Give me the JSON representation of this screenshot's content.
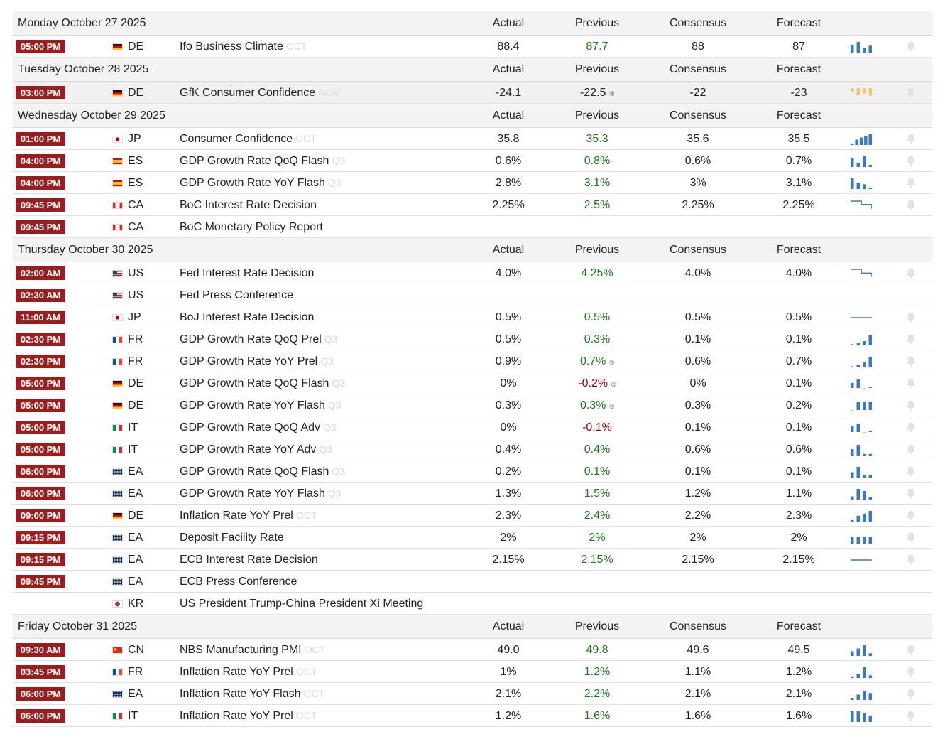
{
  "columns": {
    "actual": "Actual",
    "previous": "Previous",
    "consensus": "Consensus",
    "forecast": "Forecast"
  },
  "colors": {
    "time_badge": "#9b1d1d",
    "positive": "#1a7a1a",
    "negative": "#a10000",
    "spark": "#3a79c0",
    "spark_neg": "#f2c66d"
  },
  "days": [
    {
      "date": "Monday October 27 2025",
      "events": [
        {
          "time": "05:00 PM",
          "country": "DE",
          "event": "Ifo Business Climate",
          "ref": "OCT",
          "actual": "88.4",
          "previous": "87.7",
          "prev_dir": "up",
          "prev_revised": false,
          "consensus": "88",
          "forecast": "87",
          "spark": [
            0.7,
            1.0,
            0.45,
            0.65
          ],
          "spark_type": "bar"
        }
      ]
    },
    {
      "date": "Tuesday October 28 2025",
      "events": [
        {
          "time": "03:00 PM",
          "country": "DE",
          "event": "GfK Consumer Confidence",
          "ref": "NOV",
          "actual": "-24.1",
          "previous": "-22.5",
          "prev_dir": "",
          "prev_revised": true,
          "consensus": "-22",
          "forecast": "-23",
          "spark": [
            -0.5,
            -0.9,
            -0.7,
            -1.0
          ],
          "spark_type": "bar",
          "shaded": true
        }
      ]
    },
    {
      "date": "Wednesday October 29 2025",
      "events": [
        {
          "time": "01:00 PM",
          "country": "JP",
          "event": "Consumer Confidence",
          "ref": "OCT",
          "actual": "35.8",
          "previous": "35.3",
          "prev_dir": "up",
          "prev_revised": false,
          "consensus": "35.6",
          "forecast": "35.5",
          "spark": [
            0.15,
            0.5,
            0.7,
            0.85,
            1.0
          ],
          "spark_type": "bar"
        },
        {
          "time": "04:00 PM",
          "country": "ES",
          "event": "GDP Growth Rate QoQ Flash",
          "ref": "Q3",
          "actual": "0.6%",
          "previous": "0.8%",
          "prev_dir": "up",
          "prev_revised": false,
          "consensus": "0.6%",
          "forecast": "0.7%",
          "spark": [
            0.85,
            0.4,
            1.0,
            0.2
          ],
          "spark_type": "bar"
        },
        {
          "time": "04:00 PM",
          "country": "ES",
          "event": "GDP Growth Rate YoY Flash",
          "ref": "Q3",
          "actual": "2.8%",
          "previous": "3.1%",
          "prev_dir": "up",
          "prev_revised": false,
          "consensus": "3%",
          "forecast": "3.1%",
          "spark": [
            1.0,
            0.6,
            0.45,
            0.15
          ],
          "spark_type": "bar"
        },
        {
          "time": "09:45 PM",
          "country": "CA",
          "event": "BoC Interest Rate Decision",
          "ref": "",
          "actual": "2.25%",
          "previous": "2.5%",
          "prev_dir": "up",
          "prev_revised": false,
          "consensus": "2.25%",
          "forecast": "2.25%",
          "spark": [
            1.0,
            1.0,
            0.6,
            0.6,
            0.1
          ],
          "spark_type": "step"
        },
        {
          "time": "09:45 PM",
          "country": "CA",
          "event": "BoC Monetary Policy Report",
          "ref": "",
          "actual": "",
          "previous": "",
          "prev_dir": "",
          "prev_revised": false,
          "consensus": "",
          "forecast": "",
          "spark": [],
          "spark_type": "none"
        }
      ]
    },
    {
      "date": "Thursday October 30 2025",
      "events": [
        {
          "time": "02:00 AM",
          "country": "US",
          "event": "Fed Interest Rate Decision",
          "ref": "",
          "actual": "4.0%",
          "previous": "4.25%",
          "prev_dir": "up",
          "prev_revised": false,
          "consensus": "4.0%",
          "forecast": "4.0%",
          "spark": [
            1.0,
            1.0,
            0.55,
            0.55,
            0.1
          ],
          "spark_type": "step"
        },
        {
          "time": "02:30 AM",
          "country": "US",
          "event": "Fed Press Conference",
          "ref": "",
          "actual": "",
          "previous": "",
          "prev_dir": "",
          "prev_revised": false,
          "consensus": "",
          "forecast": "",
          "spark": [],
          "spark_type": "none"
        },
        {
          "time": "11:00 AM",
          "country": "JP",
          "event": "BoJ Interest Rate Decision",
          "ref": "",
          "actual": "0.5%",
          "previous": "0.5%",
          "prev_dir": "up",
          "prev_revised": false,
          "consensus": "0.5%",
          "forecast": "0.5%",
          "spark": [
            0.5,
            0.5,
            0.5,
            0.5,
            0.5
          ],
          "spark_type": "step"
        },
        {
          "time": "02:30 PM",
          "country": "FR",
          "event": "GDP Growth Rate QoQ Prel",
          "ref": "Q3",
          "actual": "0.5%",
          "previous": "0.3%",
          "prev_dir": "up",
          "prev_revised": false,
          "consensus": "0.1%",
          "forecast": "0.1%",
          "spark": [
            0.1,
            0.25,
            0.4,
            1.0
          ],
          "spark_type": "bar"
        },
        {
          "time": "02:30 PM",
          "country": "FR",
          "event": "GDP Growth Rate YoY Prel",
          "ref": "Q3",
          "actual": "0.9%",
          "previous": "0.7%",
          "prev_dir": "up",
          "prev_revised": true,
          "consensus": "0.6%",
          "forecast": "0.7%",
          "spark": [
            0.1,
            0.2,
            0.5,
            1.0
          ],
          "spark_type": "bar"
        },
        {
          "time": "05:00 PM",
          "country": "DE",
          "event": "GDP Growth Rate QoQ Flash",
          "ref": "Q3",
          "actual": "0%",
          "previous": "-0.2%",
          "prev_dir": "down",
          "prev_revised": true,
          "consensus": "0%",
          "forecast": "0.1%",
          "spark": [
            0.6,
            1.0,
            -0.4,
            0.05
          ],
          "spark_type": "bar"
        },
        {
          "time": "05:00 PM",
          "country": "DE",
          "event": "GDP Growth Rate YoY Flash",
          "ref": "Q3",
          "actual": "0.3%",
          "previous": "0.3%",
          "prev_dir": "up",
          "prev_revised": true,
          "consensus": "0.3%",
          "forecast": "0.2%",
          "spark": [
            -0.4,
            1.0,
            1.0,
            1.0
          ],
          "spark_type": "bar"
        },
        {
          "time": "05:00 PM",
          "country": "IT",
          "event": "GDP Growth Rate QoQ Adv",
          "ref": "Q3",
          "actual": "0%",
          "previous": "-0.1%",
          "prev_dir": "down",
          "prev_revised": false,
          "consensus": "0.1%",
          "forecast": "0.1%",
          "spark": [
            0.7,
            1.0,
            -0.4,
            0.05
          ],
          "spark_type": "bar"
        },
        {
          "time": "05:00 PM",
          "country": "IT",
          "event": "GDP Growth Rate YoY Adv",
          "ref": "Q3",
          "actual": "0.4%",
          "previous": "0.4%",
          "prev_dir": "up",
          "prev_revised": false,
          "consensus": "0.6%",
          "forecast": "0.6%",
          "spark": [
            0.6,
            1.0,
            0.15,
            0.15
          ],
          "spark_type": "bar"
        },
        {
          "time": "06:00 PM",
          "country": "EA",
          "event": "GDP Growth Rate QoQ Flash",
          "ref": "Q3",
          "actual": "0.2%",
          "previous": "0.1%",
          "prev_dir": "up",
          "prev_revised": false,
          "consensus": "0.1%",
          "forecast": "0.1%",
          "spark": [
            0.5,
            1.0,
            0.25,
            0.25
          ],
          "spark_type": "bar"
        },
        {
          "time": "06:00 PM",
          "country": "EA",
          "event": "GDP Growth Rate YoY Flash",
          "ref": "Q3",
          "actual": "1.3%",
          "previous": "1.5%",
          "prev_dir": "up",
          "prev_revised": false,
          "consensus": "1.2%",
          "forecast": "1.1%",
          "spark": [
            0.3,
            1.0,
            0.8,
            0.2
          ],
          "spark_type": "bar"
        },
        {
          "time": "09:00 PM",
          "country": "DE",
          "event": "Inflation Rate YoY Prel",
          "ref": "OCT",
          "actual": "2.3%",
          "previous": "2.4%",
          "prev_dir": "up",
          "prev_revised": false,
          "consensus": "2.2%",
          "forecast": "2.3%",
          "spark": [
            0.15,
            0.55,
            0.75,
            1.0
          ],
          "spark_type": "bar"
        },
        {
          "time": "09:15 PM",
          "country": "EA",
          "event": "Deposit Facility Rate",
          "ref": "",
          "actual": "2%",
          "previous": "2%",
          "prev_dir": "up",
          "prev_revised": false,
          "consensus": "2%",
          "forecast": "2%",
          "spark": [
            0.6,
            0.6,
            0.6,
            0.6
          ],
          "spark_type": "bar"
        },
        {
          "time": "09:15 PM",
          "country": "EA",
          "event": "ECB Interest Rate Decision",
          "ref": "",
          "actual": "2.15%",
          "previous": "2.15%",
          "prev_dir": "up",
          "prev_revised": false,
          "consensus": "2.15%",
          "forecast": "2.15%",
          "spark": [
            0.5,
            0.5,
            0.5,
            0.5,
            0.5
          ],
          "spark_type": "step"
        },
        {
          "time": "09:45 PM",
          "country": "EA",
          "event": "ECB Press Conference",
          "ref": "",
          "actual": "",
          "previous": "",
          "prev_dir": "",
          "prev_revised": false,
          "consensus": "",
          "forecast": "",
          "spark": [],
          "spark_type": "none"
        },
        {
          "time": "",
          "country": "KR",
          "event": "US President Trump-China President Xi Meeting",
          "ref": "",
          "actual": "",
          "previous": "",
          "prev_dir": "",
          "prev_revised": false,
          "consensus": "",
          "forecast": "",
          "spark": [],
          "spark_type": "none",
          "no_bell": true
        }
      ]
    },
    {
      "date": "Friday October 31 2025",
      "events": [
        {
          "time": "09:30 AM",
          "country": "CN",
          "event": "NBS Manufacturing PMI",
          "ref": "OCT",
          "actual": "49.0",
          "previous": "49.8",
          "prev_dir": "up",
          "prev_revised": false,
          "consensus": "49.6",
          "forecast": "49.5",
          "spark": [
            0.45,
            0.7,
            1.0,
            0.25
          ],
          "spark_type": "bar"
        },
        {
          "time": "03:45 PM",
          "country": "FR",
          "event": "Inflation Rate YoY Prel",
          "ref": "OCT",
          "actual": "1%",
          "previous": "1.2%",
          "prev_dir": "up",
          "prev_revised": false,
          "consensus": "1.1%",
          "forecast": "1.2%",
          "spark": [
            0.15,
            0.4,
            1.0,
            0.25
          ],
          "spark_type": "bar"
        },
        {
          "time": "06:00 PM",
          "country": "EA",
          "event": "Inflation Rate YoY Flash",
          "ref": "OCT",
          "actual": "2.1%",
          "previous": "2.2%",
          "prev_dir": "up",
          "prev_revised": false,
          "consensus": "2.1%",
          "forecast": "2.1%",
          "spark": [
            0.2,
            0.5,
            0.8,
            0.65
          ],
          "spark_type": "bar"
        },
        {
          "time": "06:00 PM",
          "country": "IT",
          "event": "Inflation Rate YoY Prel",
          "ref": "OCT",
          "actual": "1.2%",
          "previous": "1.6%",
          "prev_dir": "up",
          "prev_revised": false,
          "consensus": "1.6%",
          "forecast": "1.6%",
          "spark": [
            1.0,
            1.0,
            0.8,
            0.6
          ],
          "spark_type": "bar"
        }
      ]
    }
  ]
}
